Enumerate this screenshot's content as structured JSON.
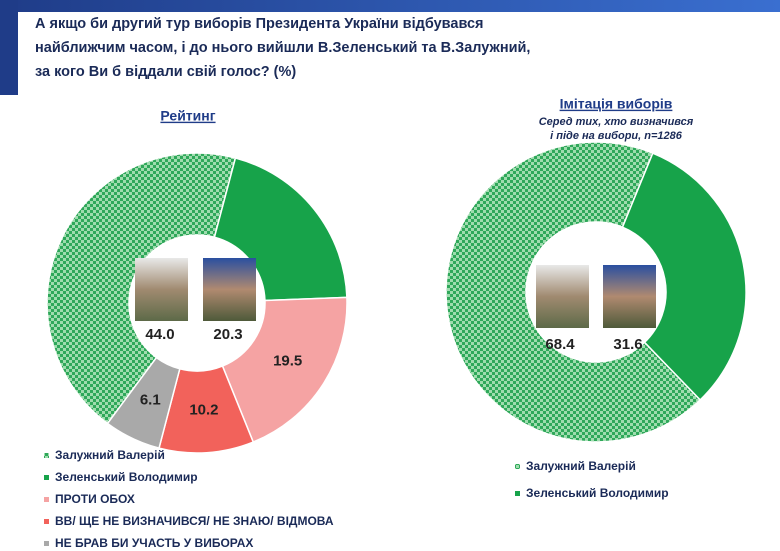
{
  "title": [
    "А якщо би другий тур виборів Президента України відбувався",
    "найближчим часом, і до нього вийшли В.Зеленський та В.Залужний,",
    "за кого Ви б віддали свій голос? (%)"
  ],
  "chart_data": [
    {
      "type": "pie",
      "title": "Рейтинг",
      "categories": [
        "Залужний Валерій",
        "Зеленський Володимир",
        "ПРОТИ ОБОХ",
        "ВВ/ ЩЕ НЕ ВИЗНАЧИВСЯ/ НЕ ЗНАЮ/ ВІДМОВА",
        "НЕ БРАВ БИ УЧАСТЬ У ВИБОРАХ"
      ],
      "values": [
        44.0,
        20.3,
        19.5,
        10.2,
        6.1
      ],
      "value_labels": [
        "44.0",
        "20.3",
        "19.5",
        "10.2",
        "6.1"
      ],
      "colors": [
        "pattern",
        "#17a34a",
        "#f5a3a3",
        "#f2625b",
        "#a9a9a9"
      ]
    },
    {
      "type": "pie",
      "title": "Імітація виборів",
      "subtitle": [
        "Серед тих, хто визначився",
        "і піде на вибори, n=1286"
      ],
      "categories": [
        "Залужний Валерій",
        "Зеленський Володимир"
      ],
      "values": [
        68.4,
        31.6
      ],
      "value_labels": [
        "68.4",
        "31.6"
      ],
      "colors": [
        "pattern",
        "#17a34a"
      ]
    }
  ]
}
